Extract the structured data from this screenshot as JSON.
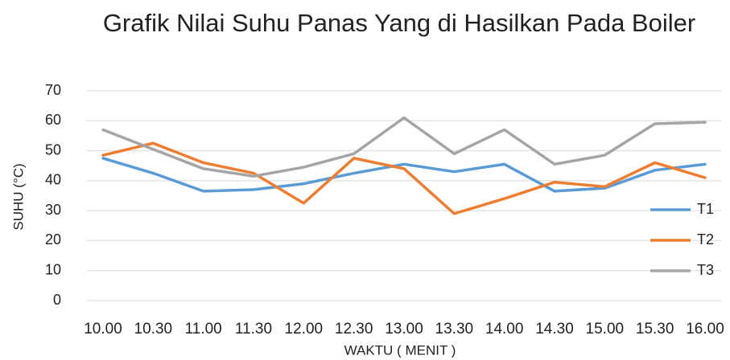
{
  "chart_data": {
    "type": "line",
    "title": "Grafik Nilai Suhu Panas Yang di Hasilkan Pada Boiler",
    "x_label": "WAKTU ( MENIT )",
    "y_label": "SUHU (°C)",
    "categories": [
      "10.00",
      "10.30",
      "11.00",
      "11.30",
      "12.00",
      "12.30",
      "13.00",
      "13.30",
      "14.00",
      "14.30",
      "15.00",
      "15.30",
      "16.00"
    ],
    "series": [
      {
        "name": "T1",
        "color": "#5b9bd5",
        "values": [
          47.5,
          42.5,
          36.5,
          37,
          39,
          42.5,
          45.5,
          43,
          45.5,
          36.5,
          37.5,
          43.5,
          45.5
        ]
      },
      {
        "name": "T2",
        "color": "#ed7d31",
        "values": [
          48.5,
          52.5,
          46,
          42.5,
          32.5,
          47.5,
          44,
          29,
          34,
          39.5,
          38,
          46,
          41
        ]
      },
      {
        "name": "T3",
        "color": "#a5a5a5",
        "values": [
          57,
          50.5,
          44,
          41.5,
          44.5,
          49,
          61,
          49,
          57,
          45.5,
          48.5,
          59,
          59.5
        ]
      }
    ],
    "ylim": [
      0,
      70
    ],
    "yticks": [
      0,
      10,
      20,
      30,
      40,
      50,
      60,
      70
    ],
    "grid": true,
    "legend": "right"
  }
}
